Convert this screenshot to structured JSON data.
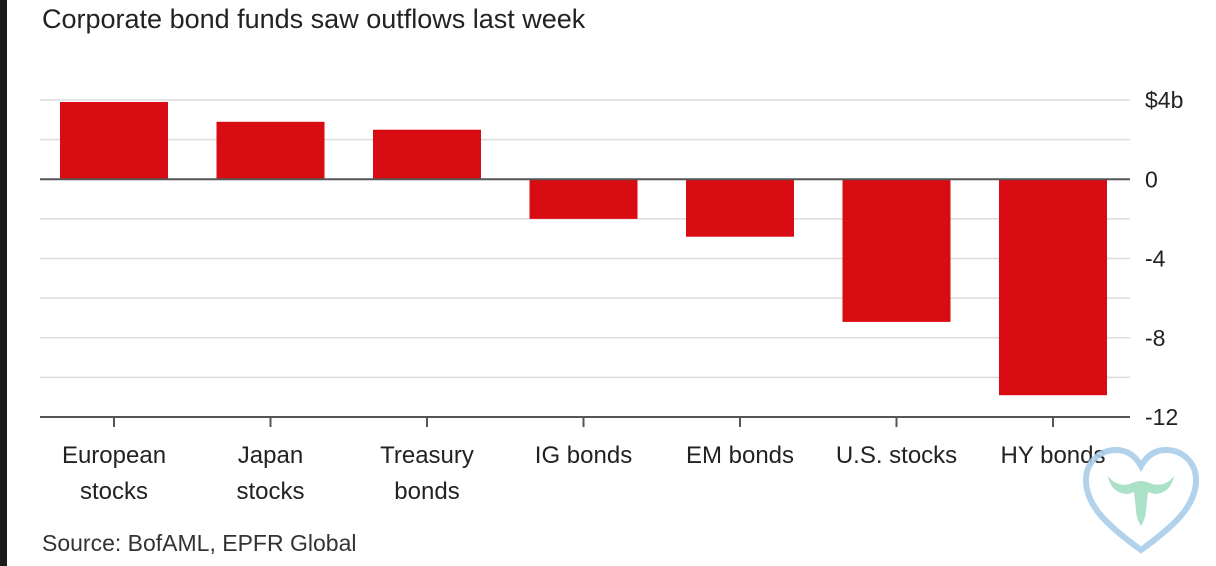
{
  "chart_data": {
    "type": "bar",
    "title": "Corporate bond funds saw outflows last week",
    "source": "Source: BofAML, EPFR Global",
    "categories": [
      [
        "European",
        "stocks"
      ],
      [
        "Japan",
        "stocks"
      ],
      [
        "Treasury",
        "bonds"
      ],
      [
        "IG bonds"
      ],
      [
        "EM bonds"
      ],
      [
        "U.S. stocks"
      ],
      [
        "HY bonds"
      ]
    ],
    "values": [
      3.9,
      2.9,
      2.5,
      -2.0,
      -2.9,
      -7.2,
      -10.9
    ],
    "ylim": [
      -12,
      4
    ],
    "yticks": [
      {
        "value": 4,
        "label": "$4b"
      },
      {
        "value": 0,
        "label": "0"
      },
      {
        "value": -4,
        "label": "-4"
      },
      {
        "value": -8,
        "label": "-8"
      },
      {
        "value": -12,
        "label": "-12"
      }
    ],
    "minor_gridlines": [
      2,
      -2,
      -6,
      -10
    ],
    "bar_color": "#d90b13",
    "grid_color": "#dcdcdc",
    "axis_color": "#555555",
    "xlabel": "",
    "ylabel": ""
  },
  "watermark": {
    "icon": "heart-bull-logo-icon"
  }
}
